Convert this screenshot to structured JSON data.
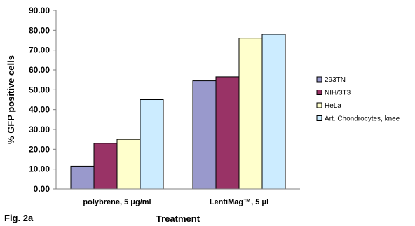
{
  "figure_label": "Fig. 2a",
  "chart_data": {
    "type": "bar",
    "xlabel": "Treatment",
    "ylabel": "% GFP positive cells",
    "ylim": [
      0,
      90
    ],
    "y_ticks": [
      "0.00",
      "10.00",
      "20.00",
      "30.00",
      "40.00",
      "50.00",
      "60.00",
      "70.00",
      "80.00",
      "90.00"
    ],
    "grid": false,
    "legend_position": "right",
    "categories": [
      "polybrene, 5 μg/ml",
      "LentiMag™, 5 μl"
    ],
    "series": [
      {
        "name": "293TN",
        "color": "#9999cc",
        "values": [
          11.5,
          54.5
        ]
      },
      {
        "name": "NIH/3T3",
        "color": "#993366",
        "values": [
          23.0,
          56.5
        ]
      },
      {
        "name": "HeLa",
        "color": "#ffffcc",
        "values": [
          25.0,
          76.0
        ]
      },
      {
        "name": "Art. Chondrocytes, knee",
        "color": "#ccecff",
        "values": [
          45.0,
          78.0
        ]
      }
    ]
  }
}
